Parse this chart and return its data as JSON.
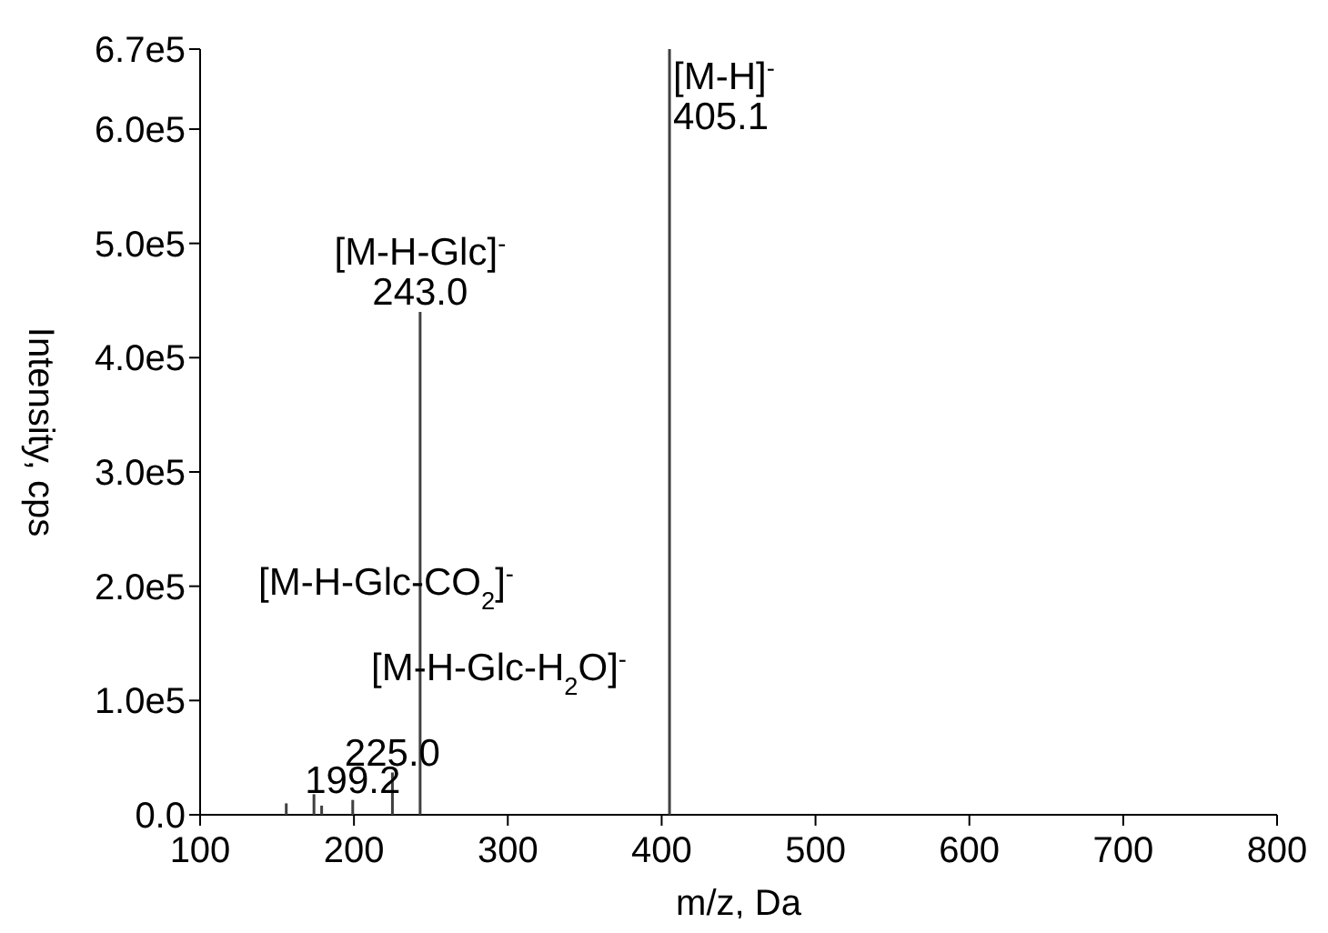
{
  "chart_data": {
    "type": "bar",
    "xlabel": "m/z, Da",
    "ylabel": "Intensity, cps",
    "x": [
      156,
      174,
      179,
      199.2,
      225.0,
      243.0,
      405.1
    ],
    "values": [
      10000,
      18000,
      8000,
      13000,
      37000,
      440000,
      670000
    ],
    "color": "#404040",
    "xlim": [
      100,
      800
    ],
    "xticks": [
      100,
      200,
      300,
      400,
      500,
      600,
      700,
      800
    ],
    "ylim": [
      0,
      670000
    ],
    "yticks": [
      {
        "value": 0,
        "label": "0.0"
      },
      {
        "value": 100000,
        "label": "1.0e5"
      },
      {
        "value": 200000,
        "label": "2.0e5"
      },
      {
        "value": 300000,
        "label": "3.0e5"
      },
      {
        "value": 400000,
        "label": "4.0e5"
      },
      {
        "value": 500000,
        "label": "5.0e5"
      },
      {
        "value": 600000,
        "label": "6.0e5"
      },
      {
        "value": 670000,
        "label": "6.7e5"
      }
    ],
    "annotations": [
      {
        "text": "[M-H]$^{-}$",
        "x": 405.1,
        "y": 670000
      },
      {
        "text": "405.1",
        "x": 405.1,
        "y": 670000
      },
      {
        "text": "[M-H-Glc]$^{-}$",
        "x": 243.0,
        "y": 440000
      },
      {
        "text": "243.0",
        "x": 243.0,
        "y": 440000
      },
      "[M-H-Glc-CO$_{2}$]$^{-}$",
      "[M-H-Glc-H$_{2}$O]$^{-}$",
      {
        "text": "225.0",
        "x": 225.0,
        "y": 37000
      },
      {
        "text": "199.2",
        "x": 199.2,
        "y": 13000
      }
    ]
  }
}
